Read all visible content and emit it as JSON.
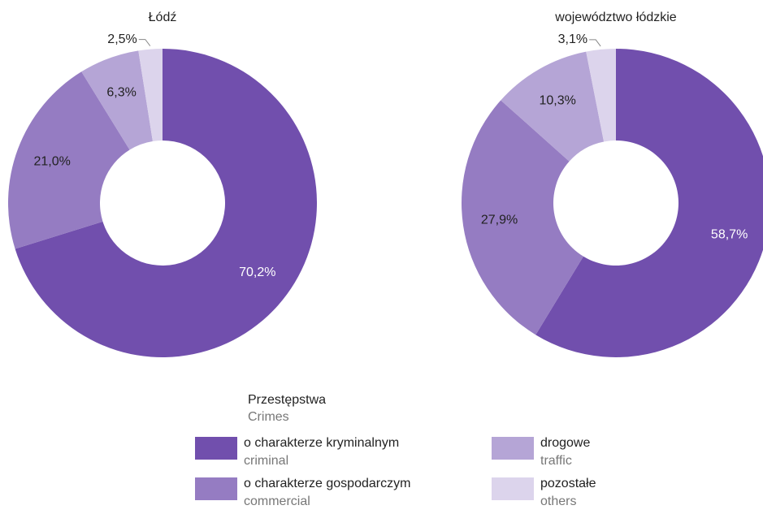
{
  "chart_data": [
    {
      "type": "pie",
      "title": "Łódź",
      "values": [
        70.2,
        21.0,
        6.3,
        2.5
      ],
      "value_labels": [
        "70,2%",
        "21,0%",
        "6,3%",
        "2,5%"
      ],
      "colors": [
        "#714fad",
        "#957cc2",
        "#b5a5d6",
        "#dcd4ec"
      ],
      "donut": true
    },
    {
      "type": "pie",
      "title": "województwo łódzkie",
      "values": [
        58.7,
        27.9,
        10.3,
        3.1
      ],
      "value_labels": [
        "58,7%",
        "27,9%",
        "10,3%",
        "3,1%"
      ],
      "colors": [
        "#714fad",
        "#957cc2",
        "#b5a5d6",
        "#dcd4ec"
      ],
      "donut": true
    }
  ],
  "legend": {
    "title": "Przestępstwa",
    "subtitle": "Crimes",
    "categories": [
      "o charakterze kryminalnym",
      "o charakterze gospodarczym",
      "drogowe",
      "pozostałe"
    ],
    "categories_en": [
      "criminal",
      "commercial",
      "traffic",
      "others"
    ]
  }
}
